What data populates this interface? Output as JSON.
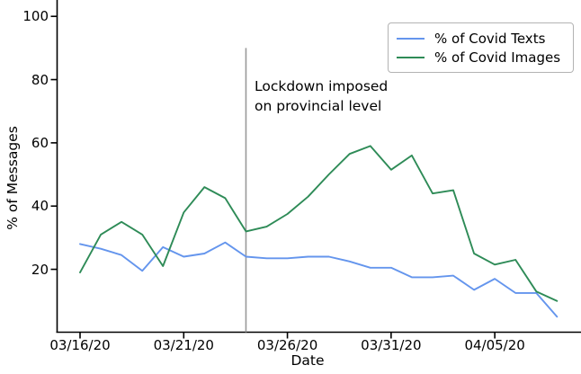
{
  "chart_data": {
    "type": "line",
    "title": "",
    "xlabel": "Date",
    "ylabel": "% of Messages",
    "x_tick_labels": [
      "03/16/20",
      "03/21/20",
      "03/26/20",
      "03/31/20",
      "04/05/20"
    ],
    "y_ticks": [
      20,
      40,
      60,
      80,
      100
    ],
    "ylim": [
      0,
      105
    ],
    "grid": "off",
    "legend_position": "upper right",
    "dates": [
      "03/16/20",
      "03/17/20",
      "03/18/20",
      "03/19/20",
      "03/20/20",
      "03/21/20",
      "03/22/20",
      "03/23/20",
      "03/24/20",
      "03/25/20",
      "03/26/20",
      "03/27/20",
      "03/28/20",
      "03/29/20",
      "03/30/20",
      "03/31/20",
      "04/01/20",
      "04/02/20",
      "04/03/20",
      "04/04/20",
      "04/05/20",
      "04/06/20",
      "04/07/20",
      "04/08/20"
    ],
    "series": [
      {
        "name": "% of Covid Texts",
        "color": "#6495ed",
        "values": [
          28,
          26.5,
          24.5,
          19.5,
          27,
          24,
          25,
          28.5,
          24,
          23.5,
          23.5,
          24,
          24,
          22.5,
          20.5,
          20.5,
          17.5,
          17.5,
          18,
          13.5,
          17,
          12.5,
          12.5,
          5
        ]
      },
      {
        "name": "% of Covid Images",
        "color": "#2e8b57",
        "values": [
          19,
          31,
          35,
          31,
          21,
          38,
          46,
          42.5,
          32,
          33.5,
          37.5,
          43,
          50,
          56.5,
          59,
          51.5,
          56,
          44,
          45,
          25,
          21.5,
          23,
          13,
          10
        ]
      }
    ],
    "annotation": {
      "line1": "Lockdown imposed",
      "line2": "on provincial level",
      "marker_date": "03/24/20",
      "marker_color": "#999999",
      "marker_top_value": 90
    }
  }
}
